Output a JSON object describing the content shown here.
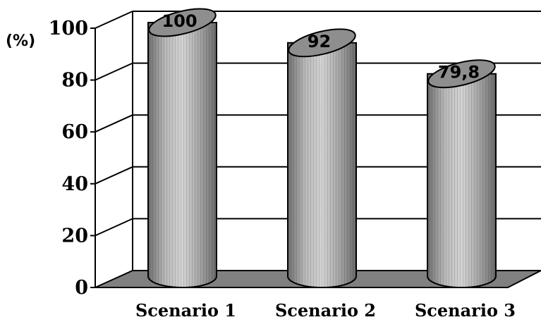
{
  "chart_data": {
    "type": "bar",
    "style": "3d-cylinder",
    "categories": [
      "Scenario 1",
      "Scenario 2",
      "Scenario 3"
    ],
    "values": [
      100,
      92,
      79.8
    ],
    "data_labels": [
      "100",
      "92",
      "79,8"
    ],
    "y_unit_label": "(%)",
    "ylim": [
      0,
      100
    ],
    "yticks": [
      0,
      20,
      40,
      60,
      80,
      100
    ],
    "grid": true,
    "legend": "none",
    "colors": {
      "bar_fill": "#b0b0b0",
      "floor": "#808080",
      "grid": "#000000"
    }
  }
}
